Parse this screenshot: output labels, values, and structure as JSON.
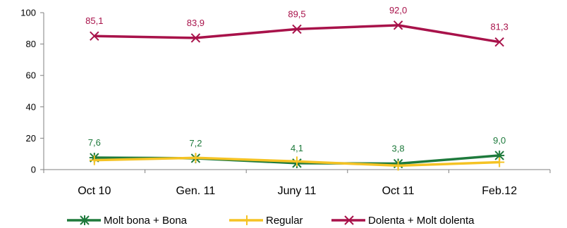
{
  "chart_data": {
    "type": "line",
    "categories": [
      "Oct 10",
      "Gen. 11",
      "Juny 11",
      "Oct 11",
      "Feb.12"
    ],
    "ylim": [
      0,
      100
    ],
    "yticks": [
      0,
      20,
      40,
      60,
      80,
      100
    ],
    "grid": false,
    "legend_position": "bottom",
    "series": [
      {
        "name": "Molt bona + Bona",
        "values": [
          7.6,
          7.2,
          4.1,
          3.8,
          9.0
        ],
        "labels": [
          "7,6",
          "7,2",
          "4,1",
          "3,8",
          "9,0"
        ],
        "color": "#1e7a3c",
        "marker": "asterisk",
        "show_labels": true
      },
      {
        "name": "Regular",
        "values": [
          6.0,
          7.5,
          5.2,
          2.5,
          4.7
        ],
        "color": "#f5c324",
        "marker": "plus",
        "show_labels": false
      },
      {
        "name": "Dolenta + Molt dolenta",
        "values": [
          85.1,
          83.9,
          89.5,
          92.0,
          81.3
        ],
        "labels": [
          "85,1",
          "83,9",
          "89,5",
          "92,0",
          "81,3"
        ],
        "color": "#a8124a",
        "marker": "x",
        "show_labels": true
      }
    ]
  }
}
